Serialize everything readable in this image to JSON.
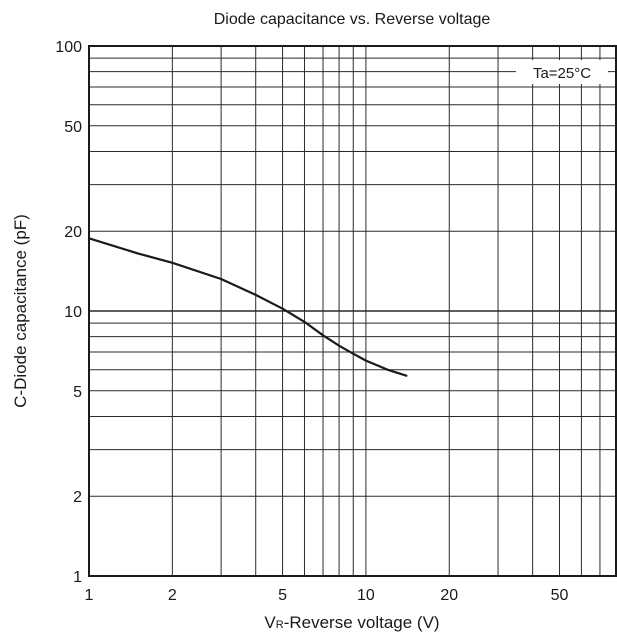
{
  "chart_data": {
    "type": "line",
    "title": "Diode capacitance vs. Reverse voltage",
    "xlabel": {
      "prefix": "V",
      "subscript": "R",
      "text": "-Reverse voltage (V)"
    },
    "ylabel": "C-Diode capacitance (pF)",
    "x_scale": "log",
    "y_scale": "log",
    "xlim": [
      1,
      80
    ],
    "ylim": [
      1,
      100
    ],
    "x_ticks": [
      1,
      2,
      5,
      10,
      20,
      50
    ],
    "x_tick_labels": [
      "1",
      "2",
      "5",
      "10",
      "20",
      "50"
    ],
    "y_ticks": [
      1,
      2,
      5,
      10,
      20,
      50,
      100
    ],
    "y_tick_labels": [
      "1",
      "2",
      "5",
      "10",
      "20",
      "50",
      "100"
    ],
    "grid": true,
    "annotation": "Ta=25°C",
    "series": [
      {
        "x": [
          1,
          1.5,
          2,
          3,
          4,
          5,
          6,
          7,
          8,
          9,
          10,
          12,
          14
        ],
        "y": [
          18.8,
          16.5,
          15.2,
          13.2,
          11.5,
          10.2,
          9.1,
          8.1,
          7.4,
          6.9,
          6.5,
          6.0,
          5.7
        ]
      }
    ],
    "line_color": "#1a1a1a",
    "grid_color": "#2a2a2a"
  }
}
